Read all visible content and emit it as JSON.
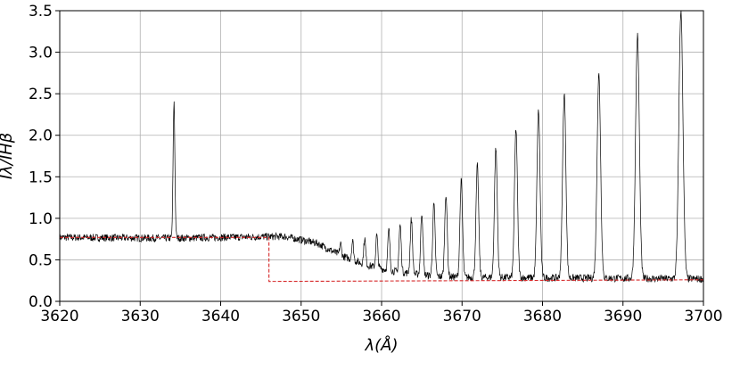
{
  "chart_data": {
    "type": "line",
    "title": "",
    "xlabel": "λ(Å)",
    "ylabel": "Iλ/IHβ",
    "xlim": [
      3620,
      3700
    ],
    "ylim": [
      0.0,
      3.5
    ],
    "x_ticks": [
      3620,
      3630,
      3640,
      3650,
      3660,
      3670,
      3680,
      3690,
      3700
    ],
    "x_tick_labels": [
      "3620",
      "3630",
      "3640",
      "3650",
      "3660",
      "3670",
      "3680",
      "3690",
      "3700"
    ],
    "y_ticks": [
      0.0,
      0.5,
      1.0,
      1.5,
      2.0,
      2.5,
      3.0,
      3.5
    ],
    "y_tick_labels": [
      "0.0",
      "0.5",
      "1.0",
      "1.5",
      "2.0",
      "2.5",
      "3.0",
      "3.5"
    ],
    "grid": true,
    "series": [
      {
        "style": "solid",
        "color": "#000000",
        "continuum_points": [
          [
            3620,
            0.77
          ],
          [
            3634,
            0.76
          ],
          [
            3646,
            0.78
          ],
          [
            3648,
            0.78
          ],
          [
            3652,
            0.7
          ],
          [
            3655,
            0.55
          ],
          [
            3658,
            0.44
          ],
          [
            3661,
            0.37
          ],
          [
            3664,
            0.33
          ],
          [
            3667,
            0.3
          ],
          [
            3670,
            0.29
          ],
          [
            3700,
            0.27
          ]
        ],
        "emission_lines": [
          [
            3634.2,
            2.4
          ],
          [
            3654.9,
            0.7
          ],
          [
            3656.4,
            0.73
          ],
          [
            3657.9,
            0.76
          ],
          [
            3659.4,
            0.8
          ],
          [
            3660.9,
            0.86
          ],
          [
            3662.3,
            0.92
          ],
          [
            3663.7,
            0.99
          ],
          [
            3665.0,
            1.07
          ],
          [
            3666.5,
            1.17
          ],
          [
            3668.0,
            1.3
          ],
          [
            3669.9,
            1.45
          ],
          [
            3671.9,
            1.63
          ],
          [
            3674.2,
            1.85
          ],
          [
            3676.7,
            2.08
          ],
          [
            3679.5,
            2.3
          ],
          [
            3682.7,
            2.5
          ],
          [
            3687.0,
            2.73
          ],
          [
            3691.8,
            3.2
          ],
          [
            3697.2,
            3.5
          ]
        ]
      },
      {
        "style": "dashed",
        "color": "#d62728",
        "x": [
          3620,
          3646,
          3646,
          3700
        ],
        "y": [
          0.77,
          0.77,
          0.24,
          0.26
        ]
      }
    ]
  }
}
